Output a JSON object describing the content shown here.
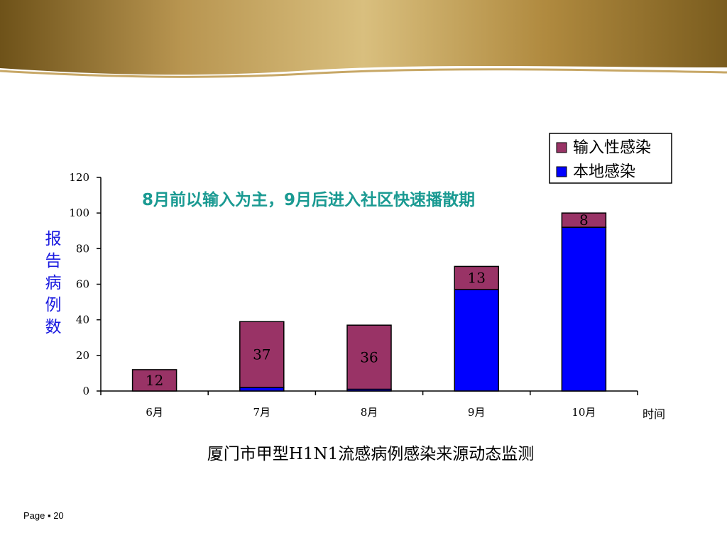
{
  "footer": {
    "page_label": "Page ▪ 20"
  },
  "colors": {
    "imported": "#993366",
    "local": "#0000ff",
    "annotation": "#1a9a92",
    "ylabel": "#1a1ae0",
    "banner_dark": "#7a5c1e",
    "banner_light": "#d9bf7e"
  },
  "chart_data": {
    "type": "bar",
    "stacked": true,
    "title": "厦门市甲型H1N1流感病例感染来源动态监测",
    "ylabel": "报告病例数",
    "xlabel": "时间",
    "categories": [
      "6月",
      "7月",
      "8月",
      "9月",
      "10月"
    ],
    "series": [
      {
        "name": "本地感染",
        "color": "#0000ff",
        "values": [
          0,
          2,
          1,
          57,
          92
        ]
      },
      {
        "name": "输入性感染",
        "color": "#993366",
        "values": [
          12,
          37,
          36,
          13,
          8
        ]
      }
    ],
    "bar_labels": [
      "12",
      "37",
      "36",
      "13",
      "8"
    ],
    "yticks": [
      "0",
      "20",
      "40",
      "60",
      "80",
      "100",
      "120"
    ],
    "ylim": [
      0,
      120
    ],
    "legend_items": [
      "输入性感染",
      "本地感染"
    ],
    "legend_position": "top-right",
    "grid": false,
    "annotation": "8月前以输入为主，9月后进入社区快速播散期"
  }
}
